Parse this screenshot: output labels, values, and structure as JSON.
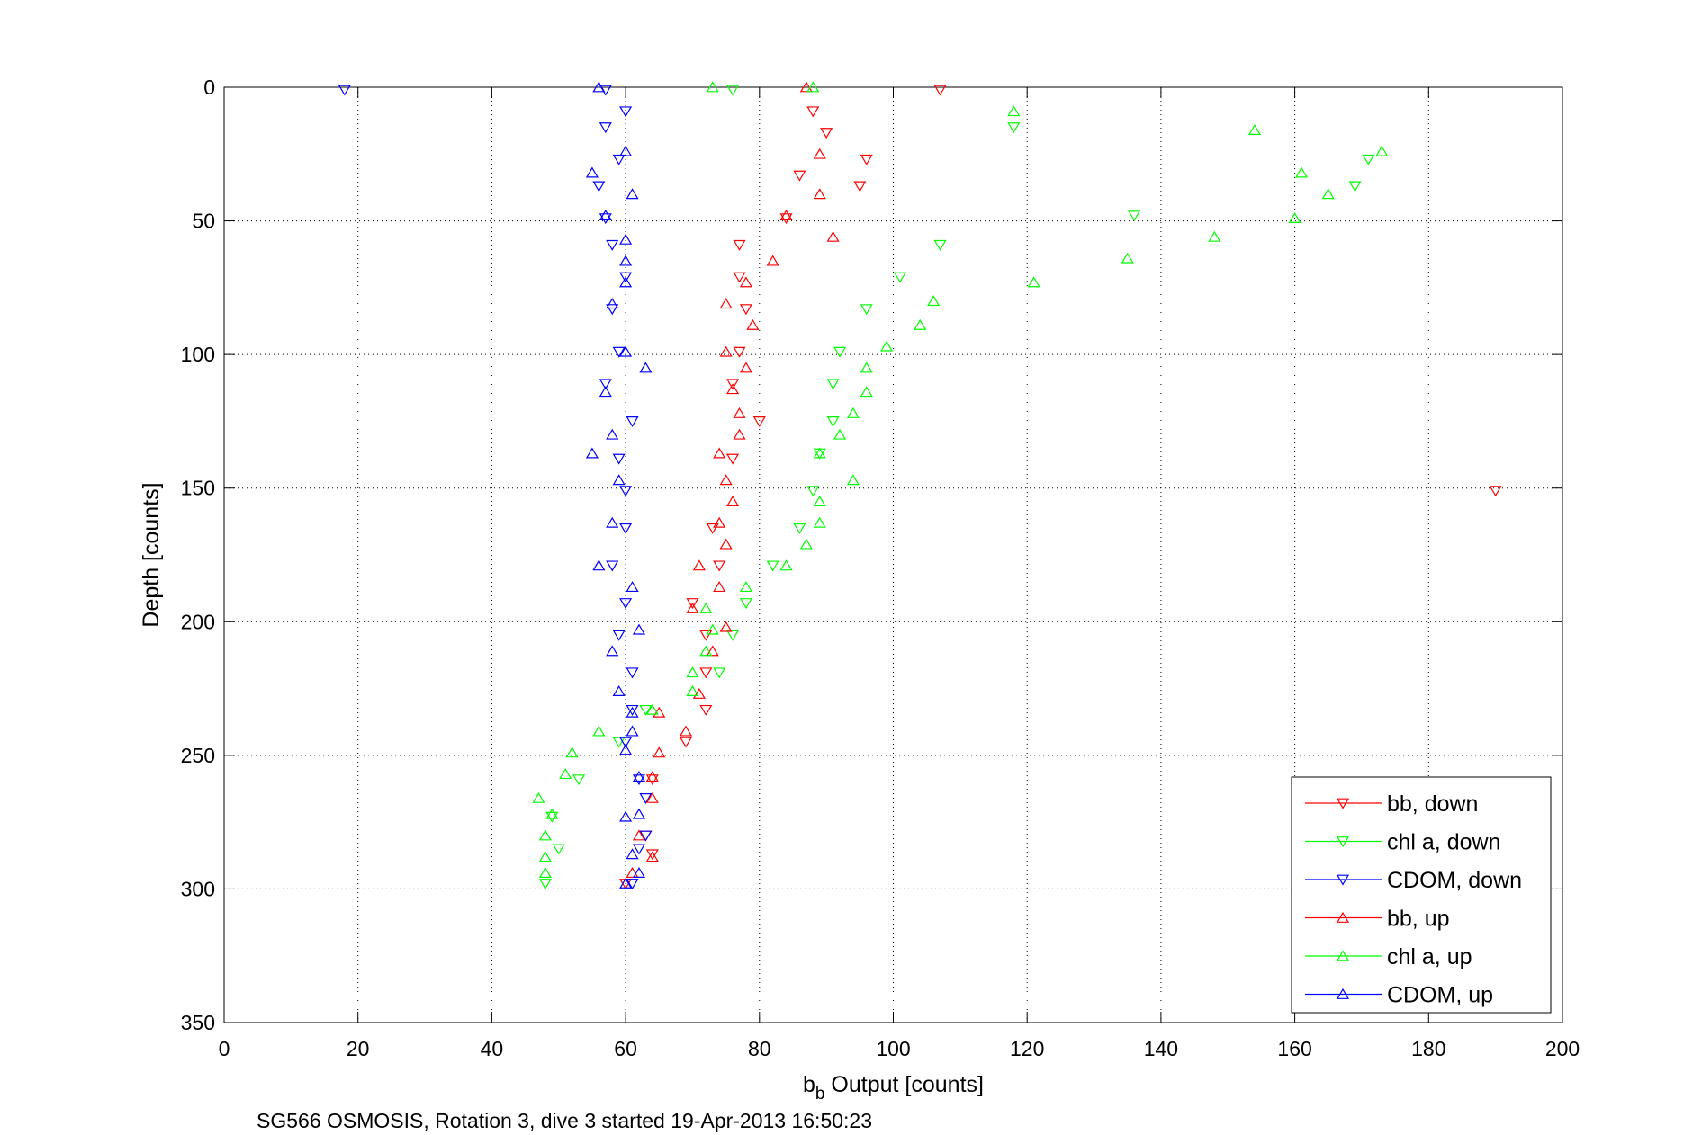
{
  "chart_data": {
    "type": "scatter",
    "title": "",
    "xlabel_main": "b",
    "xlabel_sub": "b",
    "xlabel_rest": " Output [counts]",
    "ylabel": "Depth [counts]",
    "caption": "SG566 OSMOSIS, Rotation 3, dive 3 started 19-Apr-2013 16:50:23",
    "xlim": [
      0,
      200
    ],
    "ylim": [
      0,
      350
    ],
    "y_reversed": true,
    "grid": true,
    "legend_position": "bottom-right",
    "xticks": [
      "0",
      "20",
      "40",
      "60",
      "80",
      "100",
      "120",
      "140",
      "160",
      "180",
      "200"
    ],
    "yticks": [
      "0",
      "50",
      "100",
      "150",
      "200",
      "250",
      "300",
      "350"
    ],
    "series": [
      {
        "name": "bb, down",
        "color": "#ff0000",
        "marker": "triangle-down",
        "points": [
          [
            107,
            1
          ],
          [
            88,
            9
          ],
          [
            90,
            17
          ],
          [
            96,
            27
          ],
          [
            86,
            33
          ],
          [
            95,
            37
          ],
          [
            84,
            49
          ],
          [
            77,
            59
          ],
          [
            77,
            71
          ],
          [
            78,
            83
          ],
          [
            77,
            99
          ],
          [
            76,
            111
          ],
          [
            80,
            125
          ],
          [
            76,
            139
          ],
          [
            190,
            151
          ],
          [
            73,
            165
          ],
          [
            74,
            179
          ],
          [
            70,
            193
          ],
          [
            72,
            205
          ],
          [
            72,
            219
          ],
          [
            72,
            233
          ],
          [
            69,
            245
          ],
          [
            64,
            259
          ],
          [
            63,
            280
          ],
          [
            64,
            287
          ],
          [
            60,
            298
          ]
        ]
      },
      {
        "name": "chl a, down",
        "color": "#00ff00",
        "marker": "triangle-down",
        "points": [
          [
            76,
            1
          ],
          [
            118,
            15
          ],
          [
            171,
            27
          ],
          [
            169,
            37
          ],
          [
            136,
            48
          ],
          [
            107,
            59
          ],
          [
            101,
            71
          ],
          [
            96,
            83
          ],
          [
            92,
            99
          ],
          [
            91,
            111
          ],
          [
            91,
            125
          ],
          [
            89,
            137
          ],
          [
            88,
            151
          ],
          [
            86,
            165
          ],
          [
            82,
            179
          ],
          [
            78,
            193
          ],
          [
            76,
            205
          ],
          [
            74,
            219
          ],
          [
            63,
            233
          ],
          [
            59,
            245
          ],
          [
            53,
            259
          ],
          [
            49,
            273
          ],
          [
            50,
            285
          ],
          [
            48,
            298
          ]
        ]
      },
      {
        "name": "CDOM, down",
        "color": "#0000ff",
        "marker": "triangle-down",
        "points": [
          [
            18,
            1
          ],
          [
            57,
            1
          ],
          [
            60,
            9
          ],
          [
            57,
            15
          ],
          [
            59,
            27
          ],
          [
            56,
            37
          ],
          [
            57,
            49
          ],
          [
            58,
            59
          ],
          [
            60,
            71
          ],
          [
            58,
            83
          ],
          [
            59,
            99
          ],
          [
            57,
            111
          ],
          [
            61,
            125
          ],
          [
            59,
            139
          ],
          [
            60,
            151
          ],
          [
            60,
            165
          ],
          [
            58,
            179
          ],
          [
            60,
            193
          ],
          [
            59,
            205
          ],
          [
            61,
            219
          ],
          [
            61,
            233
          ],
          [
            60,
            245
          ],
          [
            62,
            259
          ],
          [
            63,
            266
          ],
          [
            63,
            280
          ],
          [
            62,
            285
          ],
          [
            61,
            298
          ]
        ]
      },
      {
        "name": "bb, up",
        "color": "#ff0000",
        "marker": "triangle-up",
        "points": [
          [
            87,
            0
          ],
          [
            89,
            25
          ],
          [
            89,
            40
          ],
          [
            84,
            48
          ],
          [
            91,
            56
          ],
          [
            82,
            65
          ],
          [
            78,
            73
          ],
          [
            75,
            81
          ],
          [
            79,
            89
          ],
          [
            75,
            99
          ],
          [
            78,
            105
          ],
          [
            76,
            113
          ],
          [
            77,
            122
          ],
          [
            77,
            130
          ],
          [
            74,
            137
          ],
          [
            75,
            147
          ],
          [
            76,
            155
          ],
          [
            74,
            163
          ],
          [
            75,
            171
          ],
          [
            71,
            179
          ],
          [
            74,
            187
          ],
          [
            70,
            195
          ],
          [
            75,
            202
          ],
          [
            73,
            211
          ],
          [
            71,
            227
          ],
          [
            65,
            234
          ],
          [
            69,
            241
          ],
          [
            65,
            249
          ],
          [
            64,
            258
          ],
          [
            64,
            266
          ],
          [
            62,
            280
          ],
          [
            64,
            288
          ],
          [
            61,
            294
          ]
        ]
      },
      {
        "name": "chl a, up",
        "color": "#00ff00",
        "marker": "triangle-up",
        "points": [
          [
            73,
            0
          ],
          [
            88,
            0
          ],
          [
            118,
            9
          ],
          [
            154,
            16
          ],
          [
            173,
            24
          ],
          [
            161,
            32
          ],
          [
            165,
            40
          ],
          [
            160,
            49
          ],
          [
            148,
            56
          ],
          [
            135,
            64
          ],
          [
            121,
            73
          ],
          [
            106,
            80
          ],
          [
            104,
            89
          ],
          [
            99,
            97
          ],
          [
            96,
            105
          ],
          [
            96,
            114
          ],
          [
            94,
            122
          ],
          [
            92,
            130
          ],
          [
            89,
            137
          ],
          [
            94,
            147
          ],
          [
            89,
            155
          ],
          [
            89,
            163
          ],
          [
            87,
            171
          ],
          [
            84,
            179
          ],
          [
            78,
            187
          ],
          [
            72,
            195
          ],
          [
            73,
            203
          ],
          [
            72,
            211
          ],
          [
            70,
            219
          ],
          [
            70,
            226
          ],
          [
            64,
            233
          ],
          [
            56,
            241
          ],
          [
            52,
            249
          ],
          [
            51,
            257
          ],
          [
            47,
            266
          ],
          [
            49,
            272
          ],
          [
            48,
            280
          ],
          [
            48,
            288
          ],
          [
            48,
            294
          ]
        ]
      },
      {
        "name": "CDOM, up",
        "color": "#0000ff",
        "marker": "triangle-up",
        "points": [
          [
            56,
            0
          ],
          [
            60,
            24
          ],
          [
            55,
            32
          ],
          [
            61,
            40
          ],
          [
            57,
            48
          ],
          [
            60,
            57
          ],
          [
            60,
            65
          ],
          [
            60,
            73
          ],
          [
            58,
            81
          ],
          [
            60,
            99
          ],
          [
            63,
            105
          ],
          [
            57,
            114
          ],
          [
            58,
            130
          ],
          [
            55,
            137
          ],
          [
            59,
            147
          ],
          [
            58,
            163
          ],
          [
            56,
            179
          ],
          [
            61,
            187
          ],
          [
            62,
            203
          ],
          [
            58,
            211
          ],
          [
            59,
            226
          ],
          [
            61,
            234
          ],
          [
            61,
            241
          ],
          [
            60,
            248
          ],
          [
            62,
            258
          ],
          [
            62,
            272
          ],
          [
            60,
            273
          ],
          [
            61,
            287
          ],
          [
            62,
            294
          ],
          [
            60,
            298
          ]
        ]
      }
    ]
  }
}
